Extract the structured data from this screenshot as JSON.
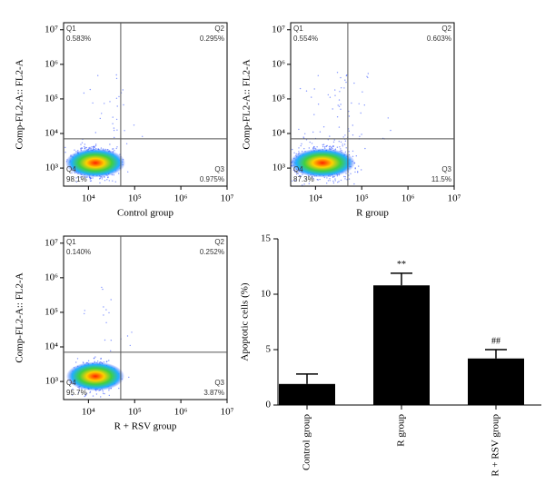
{
  "chart_data": [
    {
      "type": "flow",
      "xlabel": "Control group",
      "ylabel": "Comp-FL2-A:: FL2-A",
      "log": true,
      "xlim": [
        2900,
        10000000
      ],
      "ylim": [
        300,
        16000000
      ],
      "xticks": [
        {
          "value": 10000,
          "label": "10⁴"
        },
        {
          "value": 100000,
          "label": "10⁵"
        },
        {
          "value": 1000000,
          "label": "10⁶"
        },
        {
          "value": 10000000,
          "label": "10⁷"
        }
      ],
      "yticks": [
        {
          "value": 1000,
          "label": "10³"
        },
        {
          "value": 10000,
          "label": "10⁴"
        },
        {
          "value": 100000,
          "label": "10⁵"
        },
        {
          "value": 1000000,
          "label": "10⁶"
        },
        {
          "value": 10000000,
          "label": "10⁷"
        }
      ],
      "gate": {
        "x": 50000,
        "y": 7000
      },
      "quadrants": {
        "names": [
          "Q1",
          "Q2",
          "Q3",
          "Q4"
        ],
        "values": [
          0.583,
          0.295,
          0.975,
          98.1
        ],
        "value_labels": [
          "0.583%",
          "0.295%",
          "0.975%",
          "98.1%"
        ]
      }
    },
    {
      "type": "flow",
      "xlabel": "R group",
      "ylabel": "Comp-FL2-A:: FL2-A",
      "log": true,
      "xlim": [
        2900,
        10000000
      ],
      "ylim": [
        300,
        16000000
      ],
      "xticks": [
        {
          "value": 10000,
          "label": "10⁴"
        },
        {
          "value": 100000,
          "label": "10⁵"
        },
        {
          "value": 1000000,
          "label": "10⁶"
        },
        {
          "value": 10000000,
          "label": "10⁷"
        }
      ],
      "yticks": [
        {
          "value": 1000,
          "label": "10³"
        },
        {
          "value": 10000,
          "label": "10⁴"
        },
        {
          "value": 100000,
          "label": "10⁵"
        },
        {
          "value": 1000000,
          "label": "10⁶"
        },
        {
          "value": 10000000,
          "label": "10⁷"
        }
      ],
      "gate": {
        "x": 50000,
        "y": 7000
      },
      "quadrants": {
        "names": [
          "Q1",
          "Q2",
          "Q3",
          "Q4"
        ],
        "values": [
          0.554,
          0.603,
          11.5,
          87.3
        ],
        "value_labels": [
          "0.554%",
          "0.603%",
          "11.5%",
          "87.3%"
        ]
      }
    },
    {
      "type": "flow",
      "xlabel": "R + RSV group",
      "ylabel": "Comp-FL2-A:: FL2-A",
      "log": true,
      "xlim": [
        2900,
        10000000
      ],
      "ylim": [
        300,
        16000000
      ],
      "xticks": [
        {
          "value": 10000,
          "label": "10⁴"
        },
        {
          "value": 100000,
          "label": "10⁵"
        },
        {
          "value": 1000000,
          "label": "10⁶"
        },
        {
          "value": 10000000,
          "label": "10⁷"
        }
      ],
      "yticks": [
        {
          "value": 1000,
          "label": "10³"
        },
        {
          "value": 10000,
          "label": "10⁴"
        },
        {
          "value": 100000,
          "label": "10⁵"
        },
        {
          "value": 1000000,
          "label": "10⁶"
        },
        {
          "value": 10000000,
          "label": "10⁷"
        }
      ],
      "gate": {
        "x": 50000,
        "y": 7000
      },
      "quadrants": {
        "names": [
          "Q1",
          "Q2",
          "Q3",
          "Q4"
        ],
        "values": [
          0.14,
          0.252,
          3.87,
          95.7
        ],
        "value_labels": [
          "0.140%",
          "0.252%",
          "3.87%",
          "95.7%"
        ]
      }
    },
    {
      "type": "bar",
      "ylabel": "Apoptotic cells (%)",
      "categories": [
        "Control group",
        "R group",
        "R + RSV group"
      ],
      "values": [
        1.9,
        10.8,
        4.2
      ],
      "errors": [
        0.9,
        1.1,
        0.8
      ],
      "annotations": [
        null,
        "**",
        "##"
      ],
      "color": "#000000",
      "ylim": [
        0,
        15
      ],
      "yticks": [
        0,
        5,
        10,
        15
      ]
    }
  ]
}
